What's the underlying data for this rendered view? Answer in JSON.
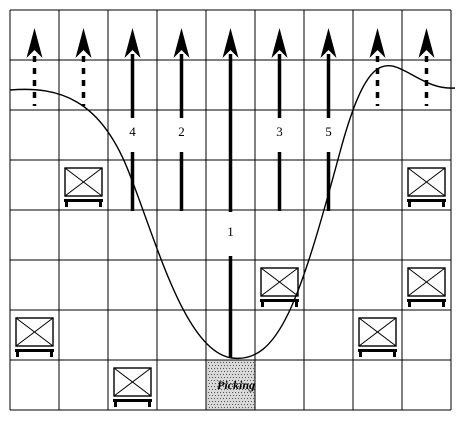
{
  "grid": {
    "cols": 9,
    "rows": 8,
    "line_color": "#000000"
  },
  "picking_area": {
    "label": "Picking",
    "col": 4,
    "row": 7,
    "fill": "#d8d8d8"
  },
  "pallets": [
    {
      "col": 1,
      "row": 3
    },
    {
      "col": 8,
      "row": 3
    },
    {
      "col": 5,
      "row": 5
    },
    {
      "col": 8,
      "row": 5
    },
    {
      "col": 0,
      "row": 6
    },
    {
      "col": 7,
      "row": 6
    },
    {
      "col": 2,
      "row": 7
    }
  ],
  "paths": [
    {
      "label": "",
      "col": 0,
      "style": "dotted"
    },
    {
      "label": "",
      "col": 1,
      "style": "dotted"
    },
    {
      "label": "4",
      "col": 2,
      "style": "solid-broken"
    },
    {
      "label": "2",
      "col": 3,
      "style": "solid-broken"
    },
    {
      "label": "1",
      "col": 4,
      "style": "solid"
    },
    {
      "label": "3",
      "col": 5,
      "style": "solid-broken"
    },
    {
      "label": "5",
      "col": 6,
      "style": "solid-broken"
    },
    {
      "label": "",
      "col": 7,
      "style": "dotted"
    },
    {
      "label": "",
      "col": 8,
      "style": "dotted"
    }
  ],
  "curve": {
    "description_visible": false
  }
}
